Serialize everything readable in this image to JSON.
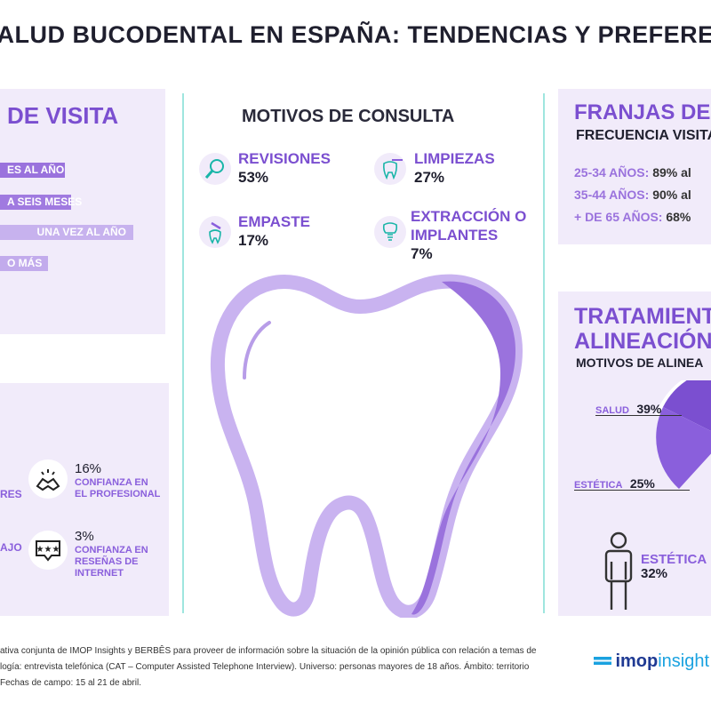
{
  "title": "SALUD BUCODENTAL EN ESPAÑA: TENDENCIAS Y PREFERENCIAS",
  "left_card": {
    "heading": "DE VISITA",
    "bars": [
      "ES AL AÑO",
      "A SEIS MESES",
      "UNA VEZ AL AÑO",
      "O MÁS"
    ]
  },
  "motivos": {
    "heading": "MOTIVOS DE CONSULTA",
    "items": [
      {
        "label": "REVISIONES",
        "value": "53%",
        "icon": "magnifier-icon"
      },
      {
        "label": "LIMPIEZAS",
        "value": "27%",
        "icon": "tooth-brush-icon"
      },
      {
        "label": "EMPASTE",
        "value": "17%",
        "icon": "drill-icon"
      },
      {
        "label_line1": "EXTRACCIÓN O",
        "label_line2": "IMPLANTES",
        "value": "7%",
        "icon": "implant-icon"
      }
    ]
  },
  "franjas": {
    "heading": "FRANJAS DE",
    "subheading": "FRECUENCIA VISITA",
    "rows": [
      {
        "label": "25-34 AÑOS:",
        "value": "89% al"
      },
      {
        "label": "35-44 AÑOS:",
        "value": "90% al"
      },
      {
        "label": "+ DE 65 AÑOS:",
        "value": "68%"
      }
    ]
  },
  "tratamientos": {
    "heading_line1": "TRATAMIENT",
    "heading_line2": "ALINEACIÓN",
    "subheading": "MOTIVOS DE ALINEA",
    "salud_label": "SALUD",
    "salud_value": "39%",
    "estetica_label": "ESTÉTICA",
    "estetica_value": "25%",
    "estetica2_label": "ESTÉTICA",
    "estetica2_value": "32%"
  },
  "confianza": {
    "partial_res": "RES",
    "partial_ajo": "AJO",
    "items": [
      {
        "value": "16%",
        "line1": "CONFIANZA EN",
        "line2": "EL PROFESIONAL",
        "icon": "handshake-icon"
      },
      {
        "value": "3%",
        "line1": "CONFIANZA EN",
        "line2": "RESEÑAS DE",
        "line3": "INTERNET",
        "icon": "review-stars-icon"
      }
    ]
  },
  "footer": {
    "line1": "ativa conjunta de IMOP Insights y BERBÊS para proveer de información sobre la situación de la opinión pública con relación a temas de",
    "line2": "logía: entrevista telefónica (CAT – Computer Assisted Telephone Interview). Universo: personas mayores de 18 años. Ámbito: territorio",
    "line3": "Fechas de campo: 15 al 21 de abril.",
    "brand_a": "imop",
    "brand_b": "insight"
  },
  "colors": {
    "accent": "#7b4fd0",
    "card": "#f1ebfa",
    "divider": "#9fe6df"
  }
}
